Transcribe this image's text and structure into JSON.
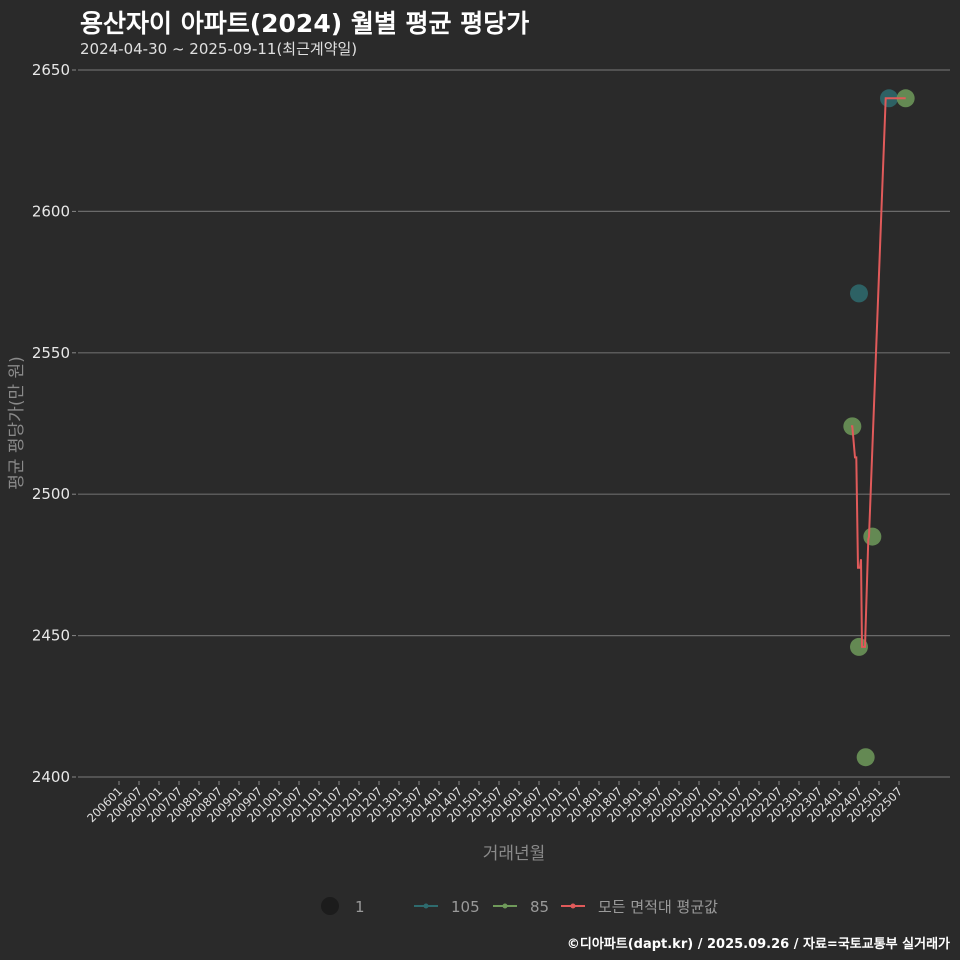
{
  "header": {
    "title": "용산자이 아파트(2024) 월별 평균 평당가",
    "subtitle": "2024-04-30 ~ 2025-09-11(최근계약일)"
  },
  "footer": {
    "credit": "©디아파트(dapt.kr) / 2025.09.26 / 자료=국토교통부 실거래가"
  },
  "colors": {
    "background": "#2a2a2a",
    "grid": "#6a6a6a",
    "series_105": "#2e6b6e",
    "series_85": "#6f9a5a",
    "average_line": "#e05a5a"
  },
  "chart_data": {
    "type": "scatter",
    "title": "용산자이 아파트(2024) 월별 평균 평당가",
    "subtitle": "2024-04-30 ~ 2025-09-11(최근계약일)",
    "xlabel": "거래년월",
    "ylabel": "평균 평당가(만 원)",
    "ylim": [
      2400,
      2650
    ],
    "yticks": [
      2400,
      2450,
      2500,
      2550,
      2600,
      2650
    ],
    "xticks": [
      "200601",
      "200607",
      "200701",
      "200707",
      "200801",
      "200807",
      "200901",
      "200907",
      "201001",
      "201007",
      "201101",
      "201107",
      "201201",
      "201207",
      "201301",
      "201307",
      "201401",
      "201407",
      "201501",
      "201507",
      "201601",
      "201607",
      "201701",
      "201707",
      "201801",
      "201807",
      "201901",
      "201907",
      "202001",
      "202007",
      "202101",
      "202107",
      "202201",
      "202207",
      "202301",
      "202307",
      "202401",
      "202407",
      "202501",
      "202507"
    ],
    "grid": true,
    "legend": {
      "position": "bottom",
      "entries": [
        {
          "label": "1",
          "type": "size"
        },
        {
          "label": "105",
          "type": "series",
          "color": "#2e6b6e"
        },
        {
          "label": "85",
          "type": "series",
          "color": "#6f9a5a"
        },
        {
          "label": "모든 면적대 평균값",
          "type": "line",
          "color": "#e05a5a"
        }
      ]
    },
    "series": [
      {
        "name": "105",
        "points": [
          {
            "x": "202407",
            "y": 2571
          },
          {
            "x": "202504",
            "y": 2640
          }
        ]
      },
      {
        "name": "85",
        "points": [
          {
            "x": "202405",
            "y": 2524
          },
          {
            "x": "202407",
            "y": 2446
          },
          {
            "x": "202409",
            "y": 2407
          },
          {
            "x": "202411",
            "y": 2485
          },
          {
            "x": "202509",
            "y": 2640
          }
        ]
      },
      {
        "name": "모든 면적대 평균값",
        "type": "line",
        "points": [
          {
            "x": "202404.6",
            "y": 2524
          },
          {
            "x": "202405.0",
            "y": 2524
          },
          {
            "x": "202405.8",
            "y": 2513
          },
          {
            "x": "202406.2",
            "y": 2513
          },
          {
            "x": "202406.7",
            "y": 2474
          },
          {
            "x": "202407.3",
            "y": 2474
          },
          {
            "x": "202407.6",
            "y": 2477
          },
          {
            "x": "202407.9",
            "y": 2446
          },
          {
            "x": "202408.8",
            "y": 2446
          },
          {
            "x": "202409.8",
            "y": 2484
          },
          {
            "x": "202410.0",
            "y": 2485
          },
          {
            "x": "202503.0",
            "y": 2640
          },
          {
            "x": "202509",
            "y": 2640
          }
        ]
      }
    ]
  }
}
